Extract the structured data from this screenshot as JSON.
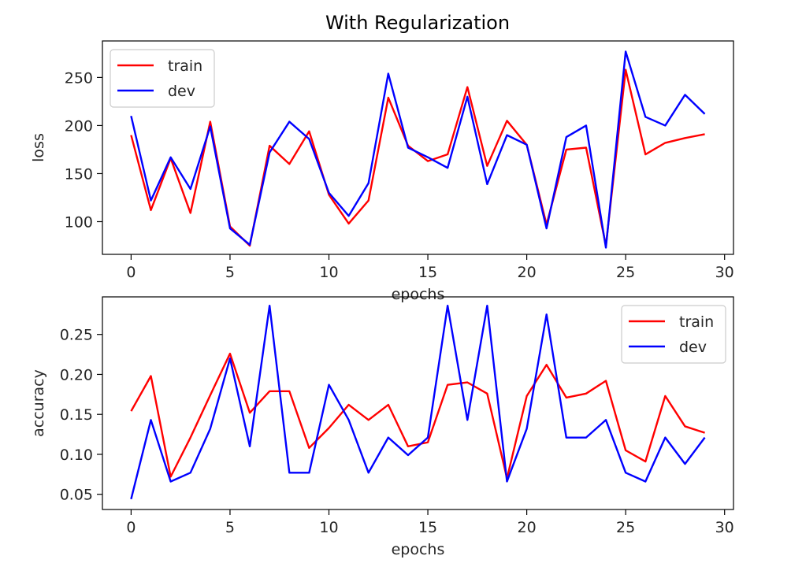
{
  "figure": {
    "title": "With Regularization"
  },
  "chart_data": [
    {
      "type": "line",
      "xlabel": "epochs",
      "ylabel": "loss",
      "xlim": [
        -1.45,
        30.45
      ],
      "ylim": [
        66,
        288
      ],
      "xticks": [
        0,
        5,
        10,
        15,
        20,
        25,
        30
      ],
      "yticks": [
        100,
        150,
        200,
        250
      ],
      "grid": false,
      "legend": "top-left",
      "x": [
        0,
        1,
        2,
        3,
        4,
        5,
        6,
        7,
        8,
        9,
        10,
        11,
        12,
        13,
        14,
        15,
        16,
        17,
        18,
        19,
        20,
        21,
        22,
        23,
        24,
        25,
        26,
        27,
        28,
        29
      ],
      "series": [
        {
          "name": "train",
          "color": "#ff0000",
          "values": [
            190,
            112,
            166,
            109,
            204,
            95,
            75,
            179,
            160,
            194,
            128,
            98,
            122,
            229,
            179,
            163,
            170,
            240,
            158,
            205,
            180,
            97,
            175,
            177,
            75,
            258,
            170,
            182,
            187,
            191
          ]
        },
        {
          "name": "dev",
          "color": "#0000ff",
          "values": [
            210,
            122,
            167,
            134,
            199,
            93,
            76,
            172,
            204,
            186,
            130,
            106,
            140,
            254,
            177,
            167,
            156,
            230,
            139,
            190,
            180,
            93,
            188,
            200,
            73,
            277,
            209,
            200,
            232,
            212
          ]
        }
      ]
    },
    {
      "type": "line",
      "xlabel": "epochs",
      "ylabel": "accuracy",
      "xlim": [
        -1.45,
        30.45
      ],
      "ylim": [
        0.031,
        0.297
      ],
      "xticks": [
        0,
        5,
        10,
        15,
        20,
        25,
        30
      ],
      "yticks": [
        0.05,
        0.1,
        0.15,
        0.2,
        0.25
      ],
      "yticklabels": [
        "0.05",
        "0.10",
        "0.15",
        "0.20",
        "0.25"
      ],
      "grid": false,
      "legend": "top-right",
      "x": [
        0,
        1,
        2,
        3,
        4,
        5,
        6,
        7,
        8,
        9,
        10,
        11,
        12,
        13,
        14,
        15,
        16,
        17,
        18,
        19,
        20,
        21,
        22,
        23,
        24,
        25,
        26,
        27,
        28,
        29
      ],
      "series": [
        {
          "name": "train",
          "color": "#ff0000",
          "values": [
            0.154,
            0.198,
            0.072,
            0.121,
            0.174,
            0.226,
            0.152,
            0.179,
            0.179,
            0.108,
            0.133,
            0.162,
            0.143,
            0.162,
            0.11,
            0.115,
            0.187,
            0.19,
            0.176,
            0.07,
            0.173,
            0.212,
            0.171,
            0.176,
            0.192,
            0.105,
            0.091,
            0.173,
            0.135,
            0.127
          ]
        },
        {
          "name": "dev",
          "color": "#0000ff",
          "values": [
            0.044,
            0.143,
            0.066,
            0.077,
            0.132,
            0.22,
            0.11,
            0.286,
            0.077,
            0.077,
            0.187,
            0.143,
            0.077,
            0.121,
            0.099,
            0.121,
            0.286,
            0.143,
            0.286,
            0.066,
            0.132,
            0.275,
            0.121,
            0.121,
            0.143,
            0.077,
            0.066,
            0.121,
            0.088,
            0.121
          ]
        }
      ]
    }
  ]
}
